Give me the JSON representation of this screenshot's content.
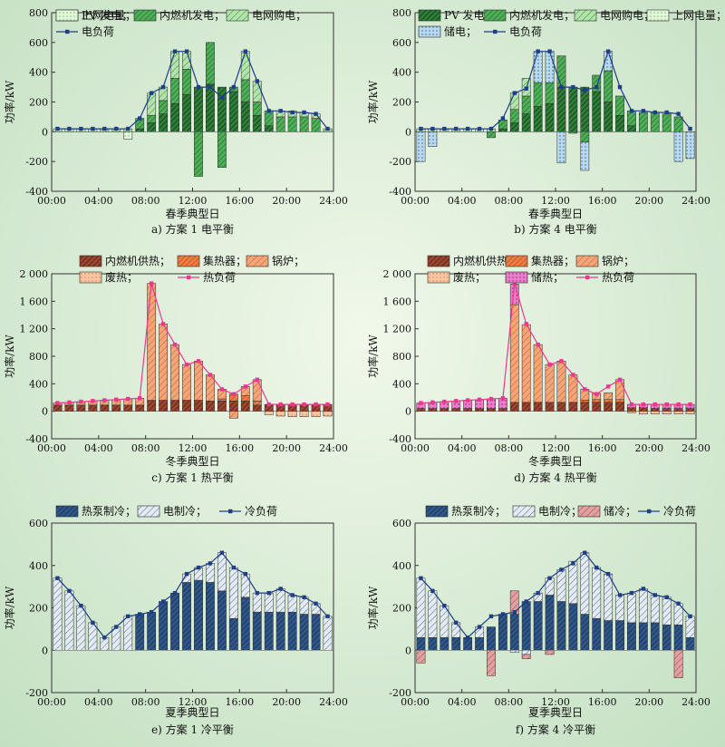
{
  "chart_data": [
    {
      "type": "bar",
      "caption": "a) 方案 1 电平衡",
      "title": "",
      "xlabel": "春季典型日",
      "ylabel": "功率/kW",
      "ylim": [
        -400,
        800
      ],
      "yticks": [
        -400,
        -200,
        0,
        200,
        400,
        600,
        800
      ],
      "xticks": [
        "00:00",
        "04:00",
        "08:00",
        "12:00",
        "16:00",
        "20:00",
        "24:00"
      ],
      "legend": [
        "PV 发电；",
        "内燃机发电；",
        "电网购电；",
        "上网电量；",
        "电负荷"
      ],
      "series": [
        {
          "name": "PV 发电；",
          "key": "pv",
          "values": [
            0,
            0,
            0,
            0,
            0,
            0,
            0,
            20,
            60,
            120,
            190,
            250,
            300,
            320,
            300,
            270,
            200,
            110,
            40,
            0,
            0,
            0,
            0,
            0
          ]
        },
        {
          "name": "内燃机发电；",
          "key": "ice",
          "values": [
            0,
            0,
            0,
            0,
            0,
            0,
            0,
            70,
            50,
            90,
            170,
            170,
            -300,
            280,
            -240,
            30,
            150,
            90,
            100,
            100,
            100,
            100,
            90,
            0
          ]
        },
        {
          "name": "电网购电；",
          "key": "grid",
          "values": [
            20,
            20,
            20,
            20,
            20,
            20,
            20,
            0,
            150,
            90,
            180,
            120,
            0,
            0,
            0,
            0,
            190,
            140,
            0,
            40,
            40,
            30,
            30,
            20
          ]
        },
        {
          "name": "上网电量；",
          "key": "sell",
          "values": [
            0,
            0,
            0,
            0,
            0,
            0,
            -50,
            0,
            0,
            0,
            0,
            0,
            0,
            0,
            0,
            0,
            0,
            0,
            0,
            0,
            0,
            0,
            0,
            0
          ]
        },
        {
          "name": "电负荷",
          "key": "load",
          "line": true,
          "values": [
            20,
            20,
            20,
            20,
            20,
            20,
            20,
            90,
            260,
            300,
            540,
            540,
            300,
            300,
            230,
            300,
            540,
            340,
            140,
            140,
            130,
            130,
            120,
            20
          ]
        }
      ]
    },
    {
      "type": "bar",
      "caption": "b) 方案 4 电平衡",
      "title": "",
      "xlabel": "春季典型日",
      "ylabel": "功率/kW",
      "ylim": [
        -400,
        800
      ],
      "yticks": [
        -400,
        -200,
        0,
        200,
        400,
        600,
        800
      ],
      "xticks": [
        "00:00",
        "04:00",
        "08:00",
        "12:00",
        "16:00",
        "20:00",
        "24:00"
      ],
      "legend": [
        "PV 发电；",
        "内燃机发电；",
        "电网购电；",
        "上网电量；",
        "储电；",
        "电负荷"
      ],
      "series": [
        {
          "name": "PV 发电；",
          "key": "pv",
          "values": [
            0,
            0,
            0,
            0,
            0,
            0,
            0,
            20,
            60,
            120,
            170,
            190,
            300,
            300,
            300,
            270,
            200,
            110,
            40,
            0,
            0,
            0,
            0,
            0
          ]
        },
        {
          "name": "内燃机发电；",
          "key": "ice",
          "values": [
            0,
            0,
            0,
            0,
            0,
            0,
            -40,
            60,
            90,
            120,
            160,
            140,
            210,
            -10,
            -70,
            110,
            210,
            130,
            100,
            130,
            130,
            120,
            100,
            0
          ]
        },
        {
          "name": "电网购电；",
          "key": "grid",
          "values": [
            20,
            20,
            20,
            20,
            20,
            20,
            20,
            0,
            110,
            120,
            0,
            0,
            0,
            0,
            0,
            0,
            0,
            0,
            0,
            0,
            0,
            0,
            0,
            0
          ]
        },
        {
          "name": "上网电量；",
          "key": "sell",
          "values": [
            0,
            0,
            0,
            0,
            0,
            0,
            0,
            0,
            0,
            0,
            0,
            0,
            0,
            0,
            0,
            0,
            0,
            0,
            0,
            0,
            0,
            0,
            0,
            0
          ]
        },
        {
          "name": "储电；",
          "key": "store",
          "values": [
            -200,
            -100,
            0,
            0,
            0,
            0,
            0,
            0,
            0,
            0,
            210,
            210,
            -210,
            0,
            -190,
            0,
            130,
            0,
            0,
            0,
            0,
            0,
            -200,
            -180
          ]
        },
        {
          "name": "电负荷",
          "key": "load",
          "line": true,
          "values": [
            20,
            20,
            20,
            20,
            20,
            20,
            20,
            90,
            260,
            290,
            540,
            540,
            300,
            300,
            280,
            300,
            540,
            300,
            140,
            140,
            130,
            130,
            120,
            20
          ]
        }
      ]
    },
    {
      "type": "bar",
      "caption": "c) 方案 1 热平衡",
      "title": "",
      "xlabel": "冬季典型日",
      "ylabel": "功率/kW",
      "ylim": [
        -400,
        2000
      ],
      "yticks": [
        -400,
        0,
        400,
        800,
        1200,
        1600,
        2000
      ],
      "ytick_labels": [
        "-400",
        "0",
        "400",
        "800",
        "1 200",
        "1 600",
        "2 000"
      ],
      "xticks": [
        "00:00",
        "04:00",
        "08:00",
        "12:00",
        "16:00",
        "20:00",
        "24:00"
      ],
      "legend": [
        "内燃机供热；",
        "集热器；",
        "锅炉；",
        "废热；",
        "热负荷"
      ],
      "series": [
        {
          "name": "内燃机供热；",
          "key": "iceh",
          "values": [
            90,
            90,
            90,
            90,
            90,
            90,
            90,
            90,
            160,
            160,
            160,
            160,
            160,
            150,
            150,
            150,
            150,
            90,
            100,
            100,
            100,
            100,
            100,
            100
          ]
        },
        {
          "name": "集热器；",
          "key": "coll",
          "values": [
            0,
            0,
            0,
            0,
            0,
            0,
            0,
            0,
            0,
            0,
            0,
            0,
            0,
            0,
            30,
            100,
            80,
            60,
            0,
            0,
            0,
            0,
            0,
            0
          ]
        },
        {
          "name": "锅炉；",
          "key": "boiler",
          "values": [
            30,
            40,
            50,
            60,
            70,
            80,
            90,
            100,
            1700,
            1110,
            810,
            520,
            570,
            380,
            140,
            -100,
            130,
            310,
            0,
            0,
            0,
            0,
            0,
            0
          ]
        },
        {
          "name": "废热；",
          "key": "waste",
          "values": [
            0,
            0,
            0,
            0,
            0,
            0,
            0,
            0,
            0,
            0,
            0,
            0,
            0,
            0,
            0,
            0,
            0,
            0,
            -50,
            -70,
            -80,
            -80,
            -80,
            -70
          ]
        },
        {
          "name": "热负荷",
          "key": "load",
          "line": true,
          "values": [
            120,
            130,
            140,
            150,
            160,
            170,
            180,
            190,
            1860,
            1270,
            970,
            680,
            730,
            530,
            320,
            250,
            360,
            460,
            100,
            100,
            100,
            100,
            100,
            100
          ]
        }
      ]
    },
    {
      "type": "bar",
      "caption": "d) 方案 4 热平衡",
      "title": "",
      "xlabel": "冬季典型日",
      "ylabel": "功率/kW",
      "ylim": [
        -400,
        2000
      ],
      "yticks": [
        -400,
        0,
        400,
        800,
        1200,
        1600,
        2000
      ],
      "ytick_labels": [
        "-400",
        "0",
        "400",
        "800",
        "1 200",
        "1 600",
        "2 000"
      ],
      "xticks": [
        "00:00",
        "04:00",
        "08:00",
        "12:00",
        "16:00",
        "20:00",
        "24:00"
      ],
      "legend": [
        "内燃机供热；",
        "集热器；",
        "锅炉；",
        "废热；",
        "储热；",
        "热负荷"
      ],
      "series": [
        {
          "name": "内燃机供热；",
          "key": "iceh",
          "values": [
            40,
            40,
            40,
            40,
            40,
            40,
            40,
            40,
            130,
            130,
            130,
            130,
            130,
            130,
            130,
            130,
            130,
            130,
            50,
            50,
            40,
            40,
            40,
            40
          ]
        },
        {
          "name": "集热器；",
          "key": "coll",
          "values": [
            0,
            0,
            0,
            0,
            0,
            0,
            0,
            0,
            0,
            0,
            0,
            0,
            0,
            0,
            30,
            40,
            40,
            40,
            0,
            0,
            0,
            0,
            0,
            0
          ]
        },
        {
          "name": "锅炉；",
          "key": "boiler",
          "values": [
            0,
            0,
            0,
            0,
            0,
            0,
            0,
            0,
            1420,
            1130,
            840,
            550,
            600,
            400,
            160,
            90,
            100,
            290,
            0,
            0,
            0,
            0,
            0,
            0
          ]
        },
        {
          "name": "废热；",
          "key": "waste",
          "values": [
            0,
            0,
            0,
            0,
            0,
            0,
            0,
            0,
            0,
            0,
            0,
            0,
            0,
            0,
            0,
            0,
            0,
            0,
            -20,
            -40,
            -40,
            -40,
            -40,
            -40
          ]
        },
        {
          "name": "储热；",
          "key": "storeh",
          "values": [
            80,
            90,
            100,
            110,
            120,
            130,
            140,
            150,
            300,
            0,
            0,
            0,
            0,
            0,
            0,
            0,
            0,
            0,
            50,
            50,
            60,
            60,
            60,
            60
          ]
        },
        {
          "name": "热负荷",
          "key": "load",
          "line": true,
          "values": [
            120,
            130,
            140,
            150,
            160,
            170,
            180,
            190,
            1860,
            1270,
            970,
            680,
            730,
            530,
            320,
            250,
            360,
            460,
            100,
            100,
            100,
            100,
            100,
            100
          ]
        }
      ]
    },
    {
      "type": "bar",
      "caption": "e) 方案 1 冷平衡",
      "title": "",
      "xlabel": "夏季典型日",
      "ylabel": "功率/kW",
      "ylim": [
        -200,
        600
      ],
      "yticks": [
        -200,
        0,
        200,
        400,
        600
      ],
      "xticks": [
        "00:00",
        "04:00",
        "08:00",
        "12:00",
        "16:00",
        "20:00",
        "24:00"
      ],
      "legend": [
        "热泵制冷；",
        "电制冷；",
        "冷负荷"
      ],
      "series": [
        {
          "name": "热泵制冷；",
          "key": "hp",
          "values": [
            0,
            0,
            0,
            0,
            0,
            0,
            0,
            170,
            180,
            230,
            270,
            320,
            330,
            320,
            280,
            150,
            250,
            180,
            180,
            180,
            180,
            170,
            170,
            0
          ]
        },
        {
          "name": "电制冷；",
          "key": "ec",
          "values": [
            340,
            280,
            210,
            130,
            60,
            110,
            160,
            0,
            0,
            0,
            0,
            40,
            60,
            90,
            180,
            240,
            110,
            90,
            90,
            110,
            80,
            80,
            50,
            160
          ]
        },
        {
          "name": "冷负荷",
          "key": "load",
          "line": true,
          "values": [
            340,
            280,
            210,
            130,
            60,
            110,
            160,
            170,
            180,
            230,
            270,
            360,
            390,
            410,
            460,
            390,
            360,
            270,
            270,
            290,
            260,
            250,
            220,
            160
          ]
        }
      ]
    },
    {
      "type": "bar",
      "caption": "f) 方案 4 冷平衡",
      "title": "",
      "xlabel": "夏季典型日",
      "ylabel": "功率/kW",
      "ylim": [
        -200,
        600
      ],
      "yticks": [
        -200,
        0,
        200,
        400,
        600
      ],
      "xticks": [
        "00:00",
        "04:00",
        "08:00",
        "12:00",
        "16:00",
        "20:00",
        "24:00"
      ],
      "legend": [
        "热泵制冷；",
        "电制冷；",
        "储冷；",
        "冷负荷"
      ],
      "series": [
        {
          "name": "热泵制冷；",
          "key": "hp",
          "values": [
            60,
            60,
            60,
            60,
            60,
            60,
            110,
            170,
            170,
            230,
            230,
            260,
            230,
            220,
            170,
            150,
            140,
            140,
            130,
            130,
            130,
            120,
            120,
            60
          ]
        },
        {
          "name": "电制冷；",
          "key": "ec",
          "values": [
            280,
            220,
            150,
            70,
            0,
            50,
            0,
            0,
            -10,
            -20,
            40,
            80,
            150,
            200,
            290,
            240,
            220,
            120,
            140,
            160,
            130,
            130,
            100,
            100
          ]
        },
        {
          "name": "储冷；",
          "key": "sc",
          "values": [
            -60,
            0,
            0,
            0,
            0,
            0,
            -120,
            0,
            110,
            -20,
            0,
            -20,
            0,
            0,
            0,
            0,
            0,
            0,
            0,
            0,
            0,
            0,
            -130,
            0
          ]
        },
        {
          "name": "冷负荷",
          "key": "load",
          "line": true,
          "values": [
            340,
            280,
            210,
            130,
            60,
            110,
            160,
            170,
            180,
            230,
            270,
            340,
            380,
            410,
            460,
            390,
            360,
            260,
            270,
            290,
            260,
            250,
            220,
            160
          ]
        }
      ]
    }
  ],
  "colors": {
    "pv": "#1e6a2c",
    "ice": "#3c9a4a",
    "grid": "#a6dca2",
    "sell": "#d8f3cf",
    "store": "#b9d9ee",
    "iceh": "#8c3a28",
    "coll": "#ea7a45",
    "boiler": "#f1a072",
    "waste": "#f7c29e",
    "storeh": "#e768c4",
    "hp": "#2a4b78",
    "ec": "#d8e2ef",
    "sc": "#d98d8d",
    "elecLine": "#1e3f86",
    "heatLine": "#e73a8f",
    "coolLine": "#1e3f86"
  }
}
